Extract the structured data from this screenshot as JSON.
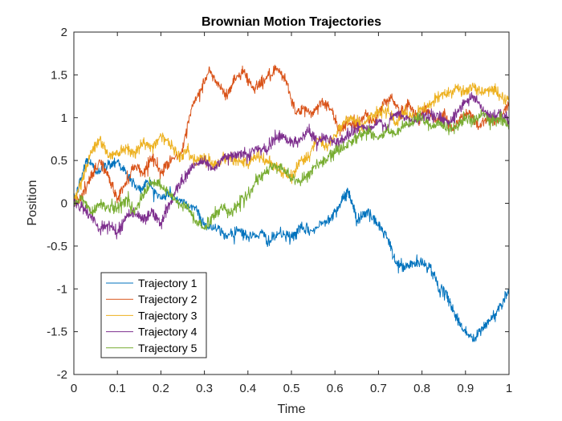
{
  "chart_data": {
    "type": "line",
    "title": "Brownian Motion Trajectories",
    "xlabel": "Time",
    "ylabel": "Position",
    "xlim": [
      0,
      1
    ],
    "ylim": [
      -2,
      2
    ],
    "xticks": [
      0,
      0.1,
      0.2,
      0.3,
      0.4,
      0.5,
      0.6,
      0.7,
      0.8,
      0.9,
      1
    ],
    "xtick_labels": [
      "0",
      "0.1",
      "0.2",
      "0.3",
      "0.4",
      "0.5",
      "0.6",
      "0.7",
      "0.8",
      "0.9",
      "1"
    ],
    "yticks": [
      2,
      1.5,
      1,
      0.5,
      0,
      -0.5,
      -1,
      -1.5,
      -2
    ],
    "ytick_labels": [
      "2",
      "1.5",
      "1",
      "0.5",
      "0",
      "-0.5",
      "-1",
      "-1.5",
      "-2"
    ],
    "grid": false,
    "legend_position": "bottom-left",
    "series": [
      {
        "name": "Trajectory 1",
        "color": "#0072BD",
        "points": [
          [
            0,
            0
          ],
          [
            0.02,
            0.35
          ],
          [
            0.03,
            0.52
          ],
          [
            0.05,
            0.38
          ],
          [
            0.08,
            0.45
          ],
          [
            0.1,
            0.5
          ],
          [
            0.12,
            0.35
          ],
          [
            0.15,
            0.15
          ],
          [
            0.17,
            0.25
          ],
          [
            0.2,
            0.05
          ],
          [
            0.22,
            0.12
          ],
          [
            0.25,
            0.0
          ],
          [
            0.28,
            -0.05
          ],
          [
            0.3,
            -0.25
          ],
          [
            0.33,
            -0.3
          ],
          [
            0.35,
            -0.38
          ],
          [
            0.38,
            -0.3
          ],
          [
            0.4,
            -0.4
          ],
          [
            0.43,
            -0.35
          ],
          [
            0.45,
            -0.45
          ],
          [
            0.47,
            -0.35
          ],
          [
            0.5,
            -0.4
          ],
          [
            0.52,
            -0.3
          ],
          [
            0.55,
            -0.32
          ],
          [
            0.58,
            -0.2
          ],
          [
            0.6,
            -0.1
          ],
          [
            0.62,
            0.05
          ],
          [
            0.63,
            0.15
          ],
          [
            0.64,
            0.0
          ],
          [
            0.65,
            -0.2
          ],
          [
            0.67,
            -0.1
          ],
          [
            0.7,
            -0.25
          ],
          [
            0.72,
            -0.4
          ],
          [
            0.74,
            -0.7
          ],
          [
            0.76,
            -0.75
          ],
          [
            0.78,
            -0.7
          ],
          [
            0.8,
            -0.7
          ],
          [
            0.82,
            -0.75
          ],
          [
            0.84,
            -1.0
          ],
          [
            0.86,
            -1.1
          ],
          [
            0.88,
            -1.35
          ],
          [
            0.9,
            -1.5
          ],
          [
            0.92,
            -1.6
          ],
          [
            0.94,
            -1.45
          ],
          [
            0.96,
            -1.35
          ],
          [
            0.98,
            -1.2
          ],
          [
            1.0,
            -1.0
          ]
        ]
      },
      {
        "name": "Trajectory 2",
        "color": "#D95319",
        "points": [
          [
            0,
            0
          ],
          [
            0.02,
            0.1
          ],
          [
            0.04,
            0.3
          ],
          [
            0.06,
            0.5
          ],
          [
            0.08,
            0.3
          ],
          [
            0.1,
            0.05
          ],
          [
            0.12,
            0.25
          ],
          [
            0.14,
            0.45
          ],
          [
            0.16,
            0.35
          ],
          [
            0.18,
            0.55
          ],
          [
            0.2,
            0.35
          ],
          [
            0.22,
            0.5
          ],
          [
            0.25,
            0.6
          ],
          [
            0.27,
            1.1
          ],
          [
            0.29,
            1.3
          ],
          [
            0.31,
            1.55
          ],
          [
            0.33,
            1.4
          ],
          [
            0.35,
            1.25
          ],
          [
            0.37,
            1.45
          ],
          [
            0.39,
            1.55
          ],
          [
            0.41,
            1.35
          ],
          [
            0.43,
            1.4
          ],
          [
            0.45,
            1.5
          ],
          [
            0.47,
            1.55
          ],
          [
            0.49,
            1.4
          ],
          [
            0.51,
            1.05
          ],
          [
            0.53,
            1.1
          ],
          [
            0.55,
            1.05
          ],
          [
            0.57,
            1.2
          ],
          [
            0.59,
            1.1
          ],
          [
            0.61,
            0.85
          ],
          [
            0.63,
            0.95
          ],
          [
            0.65,
            0.9
          ],
          [
            0.67,
            1.05
          ],
          [
            0.69,
            0.95
          ],
          [
            0.71,
            1.15
          ],
          [
            0.73,
            1.25
          ],
          [
            0.75,
            1.05
          ],
          [
            0.77,
            1.15
          ],
          [
            0.79,
            1.0
          ],
          [
            0.81,
            1.1
          ],
          [
            0.83,
            0.95
          ],
          [
            0.85,
            1.05
          ],
          [
            0.87,
            0.85
          ],
          [
            0.89,
            1.0
          ],
          [
            0.91,
            1.05
          ],
          [
            0.93,
            0.9
          ],
          [
            0.95,
            1.0
          ],
          [
            0.97,
            0.95
          ],
          [
            1.0,
            1.15
          ]
        ]
      },
      {
        "name": "Trajectory 3",
        "color": "#EDB120",
        "points": [
          [
            0,
            0
          ],
          [
            0.02,
            0.3
          ],
          [
            0.04,
            0.6
          ],
          [
            0.06,
            0.75
          ],
          [
            0.08,
            0.55
          ],
          [
            0.1,
            0.6
          ],
          [
            0.12,
            0.65
          ],
          [
            0.14,
            0.6
          ],
          [
            0.16,
            0.7
          ],
          [
            0.18,
            0.65
          ],
          [
            0.2,
            0.8
          ],
          [
            0.22,
            0.7
          ],
          [
            0.24,
            0.55
          ],
          [
            0.26,
            0.6
          ],
          [
            0.28,
            0.5
          ],
          [
            0.3,
            0.55
          ],
          [
            0.32,
            0.45
          ],
          [
            0.34,
            0.5
          ],
          [
            0.36,
            0.55
          ],
          [
            0.38,
            0.5
          ],
          [
            0.4,
            0.45
          ],
          [
            0.42,
            0.55
          ],
          [
            0.44,
            0.5
          ],
          [
            0.46,
            0.45
          ],
          [
            0.48,
            0.35
          ],
          [
            0.5,
            0.3
          ],
          [
            0.52,
            0.5
          ],
          [
            0.54,
            0.55
          ],
          [
            0.56,
            0.75
          ],
          [
            0.58,
            0.65
          ],
          [
            0.6,
            0.8
          ],
          [
            0.62,
            0.95
          ],
          [
            0.64,
            1.0
          ],
          [
            0.66,
            0.9
          ],
          [
            0.68,
            1.0
          ],
          [
            0.7,
            1.05
          ],
          [
            0.72,
            1.1
          ],
          [
            0.74,
            0.95
          ],
          [
            0.76,
            1.05
          ],
          [
            0.78,
            1.0
          ],
          [
            0.8,
            1.1
          ],
          [
            0.82,
            1.15
          ],
          [
            0.84,
            1.25
          ],
          [
            0.86,
            1.3
          ],
          [
            0.88,
            1.35
          ],
          [
            0.9,
            1.3
          ],
          [
            0.92,
            1.35
          ],
          [
            0.94,
            1.3
          ],
          [
            0.96,
            1.35
          ],
          [
            0.98,
            1.25
          ],
          [
            1.0,
            1.2
          ]
        ]
      },
      {
        "name": "Trajectory 4",
        "color": "#7E2F8E",
        "points": [
          [
            0,
            0
          ],
          [
            0.02,
            -0.05
          ],
          [
            0.04,
            -0.15
          ],
          [
            0.06,
            -0.3
          ],
          [
            0.08,
            -0.25
          ],
          [
            0.1,
            -0.35
          ],
          [
            0.12,
            -0.15
          ],
          [
            0.14,
            -0.1
          ],
          [
            0.16,
            -0.2
          ],
          [
            0.18,
            -0.1
          ],
          [
            0.2,
            -0.25
          ],
          [
            0.22,
            0.0
          ],
          [
            0.24,
            0.2
          ],
          [
            0.26,
            0.35
          ],
          [
            0.28,
            0.45
          ],
          [
            0.3,
            0.5
          ],
          [
            0.32,
            0.4
          ],
          [
            0.34,
            0.5
          ],
          [
            0.36,
            0.55
          ],
          [
            0.38,
            0.6
          ],
          [
            0.4,
            0.55
          ],
          [
            0.42,
            0.65
          ],
          [
            0.44,
            0.6
          ],
          [
            0.46,
            0.75
          ],
          [
            0.48,
            0.8
          ],
          [
            0.5,
            0.7
          ],
          [
            0.52,
            0.75
          ],
          [
            0.54,
            0.85
          ],
          [
            0.56,
            0.7
          ],
          [
            0.58,
            0.8
          ],
          [
            0.6,
            0.7
          ],
          [
            0.62,
            0.75
          ],
          [
            0.64,
            0.85
          ],
          [
            0.66,
            0.9
          ],
          [
            0.68,
            0.85
          ],
          [
            0.7,
            0.95
          ],
          [
            0.72,
            0.9
          ],
          [
            0.74,
            1.05
          ],
          [
            0.76,
            1.0
          ],
          [
            0.78,
            0.95
          ],
          [
            0.8,
            1.0
          ],
          [
            0.82,
            1.05
          ],
          [
            0.84,
            1.0
          ],
          [
            0.86,
            0.95
          ],
          [
            0.88,
            1.05
          ],
          [
            0.9,
            1.2
          ],
          [
            0.92,
            1.25
          ],
          [
            0.94,
            1.1
          ],
          [
            0.96,
            1.0
          ],
          [
            0.98,
            1.05
          ],
          [
            1.0,
            0.95
          ]
        ]
      },
      {
        "name": "Trajectory 5",
        "color": "#77AC30",
        "points": [
          [
            0,
            0
          ],
          [
            0.02,
            0.05
          ],
          [
            0.04,
            -0.1
          ],
          [
            0.06,
            0.0
          ],
          [
            0.08,
            -0.05
          ],
          [
            0.1,
            -0.05
          ],
          [
            0.12,
            0.05
          ],
          [
            0.14,
            -0.1
          ],
          [
            0.16,
            0.1
          ],
          [
            0.18,
            0.25
          ],
          [
            0.2,
            0.2
          ],
          [
            0.22,
            0.1
          ],
          [
            0.24,
            0.0
          ],
          [
            0.26,
            -0.05
          ],
          [
            0.28,
            -0.2
          ],
          [
            0.3,
            -0.3
          ],
          [
            0.32,
            -0.15
          ],
          [
            0.34,
            -0.05
          ],
          [
            0.36,
            -0.1
          ],
          [
            0.38,
            0.0
          ],
          [
            0.4,
            0.1
          ],
          [
            0.42,
            0.25
          ],
          [
            0.44,
            0.35
          ],
          [
            0.46,
            0.45
          ],
          [
            0.48,
            0.4
          ],
          [
            0.5,
            0.3
          ],
          [
            0.52,
            0.25
          ],
          [
            0.54,
            0.35
          ],
          [
            0.56,
            0.45
          ],
          [
            0.58,
            0.5
          ],
          [
            0.6,
            0.6
          ],
          [
            0.62,
            0.65
          ],
          [
            0.64,
            0.75
          ],
          [
            0.66,
            0.8
          ],
          [
            0.68,
            0.85
          ],
          [
            0.7,
            0.75
          ],
          [
            0.72,
            0.85
          ],
          [
            0.74,
            0.8
          ],
          [
            0.76,
            0.9
          ],
          [
            0.78,
            0.95
          ],
          [
            0.8,
            1.0
          ],
          [
            0.82,
            0.9
          ],
          [
            0.84,
            0.95
          ],
          [
            0.86,
            0.85
          ],
          [
            0.88,
            0.9
          ],
          [
            0.9,
            1.0
          ],
          [
            0.92,
            0.95
          ],
          [
            0.94,
            1.05
          ],
          [
            0.96,
            0.95
          ],
          [
            0.98,
            1.0
          ],
          [
            1.0,
            0.9
          ]
        ]
      }
    ]
  }
}
